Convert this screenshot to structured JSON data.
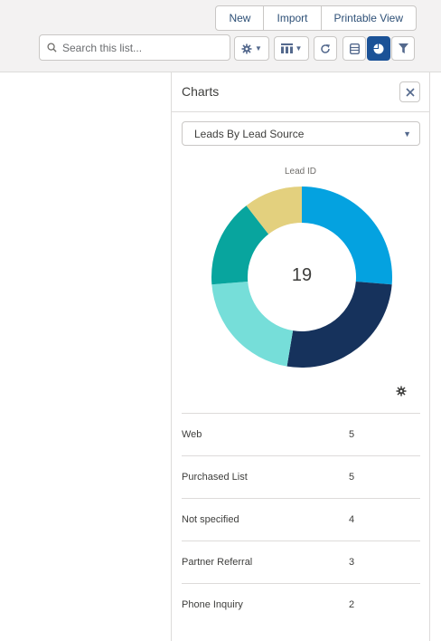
{
  "toolbar": {
    "buttons": [
      "New",
      "Import",
      "Printable View"
    ],
    "search_placeholder": "Search this list...",
    "tools": [
      {
        "icon": "gear-icon",
        "has_dropdown": true
      },
      {
        "icon": "table-icon",
        "has_dropdown": true
      },
      {
        "icon": "refresh-icon",
        "has_dropdown": false
      },
      {
        "icon": "edit-icon",
        "has_dropdown": false
      },
      {
        "icon": "chart-icon",
        "active": true
      },
      {
        "icon": "filter-icon",
        "has_dropdown": false
      }
    ]
  },
  "panel": {
    "title": "Charts",
    "close_icon": "close-icon",
    "selected_chart": "Leads By Lead Source",
    "chart_label": "Lead ID",
    "total": "19"
  },
  "chart_data": {
    "type": "pie",
    "title": "Lead ID",
    "categories": [
      "Web",
      "Purchased List",
      "Not specified",
      "Partner Referral",
      "Phone Inquiry"
    ],
    "values": [
      5,
      5,
      4,
      3,
      2
    ],
    "colors": [
      "#04a2e0",
      "#16325c",
      "#76ded9",
      "#08a59e",
      "#e3d07e"
    ],
    "total": 19
  },
  "table": {
    "rows": [
      {
        "label": "Web",
        "value": "5"
      },
      {
        "label": "Purchased List",
        "value": "5"
      },
      {
        "label": "Not specified",
        "value": "4"
      },
      {
        "label": "Partner Referral",
        "value": "3"
      },
      {
        "label": "Phone Inquiry",
        "value": "2"
      }
    ]
  }
}
